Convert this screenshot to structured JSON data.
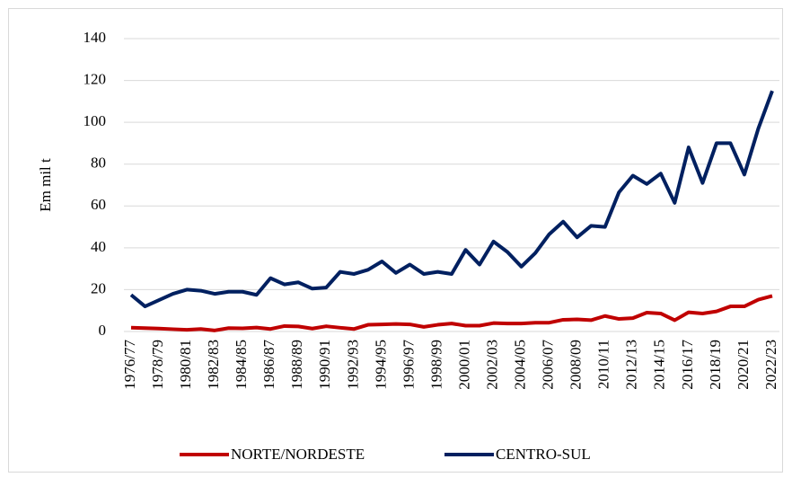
{
  "chart_data": {
    "type": "line",
    "ylabel": "Em mil t",
    "categories": [
      "1976/77",
      null,
      "1978/79",
      null,
      "1980/81",
      null,
      "1982/83",
      null,
      "1984/85",
      null,
      "1986/87",
      null,
      "1988/89",
      null,
      "1990/91",
      null,
      "1992/93",
      null,
      "1994/95",
      null,
      "1996/97",
      null,
      "1998/99",
      null,
      "2000/01",
      null,
      "2002/03",
      null,
      "2004/05",
      null,
      "2006/07",
      null,
      "2008/09",
      null,
      "2010/11",
      null,
      "2012/13",
      null,
      "2014/15",
      null,
      "2016/17",
      null,
      "2018/19",
      null,
      "2020/21",
      null,
      "2022/23"
    ],
    "series": [
      {
        "name": "NORTE/NORDESTE",
        "color": "#c00000",
        "values": [
          1.8,
          1.6,
          1.4,
          1.1,
          0.8,
          1.2,
          0.5,
          1.6,
          1.5,
          1.9,
          1.2,
          2.6,
          2.4,
          1.4,
          2.5,
          1.8,
          1.2,
          3.2,
          3.4,
          3.6,
          3.4,
          2.2,
          3.2,
          3.8,
          2.8,
          2.8,
          4.0,
          3.8,
          3.8,
          4.2,
          4.2,
          5.6,
          5.8,
          5.4,
          7.4,
          6.0,
          6.4,
          9.0,
          8.6,
          5.4,
          9.2,
          8.6,
          9.6,
          12,
          12,
          15.2,
          17
        ]
      },
      {
        "name": "CENTRO-SUL",
        "color": "#002060",
        "values": [
          17.5,
          12,
          15,
          18,
          20,
          19.5,
          18,
          19,
          19,
          17.5,
          25.5,
          22.5,
          23.5,
          20.5,
          21,
          28.5,
          27.5,
          29.5,
          33.5,
          28,
          32,
          27.5,
          28.5,
          27.5,
          39,
          32,
          43,
          38,
          31,
          37.5,
          46.5,
          52.5,
          45,
          50.5,
          50,
          66.5,
          74.5,
          70.5,
          75.5,
          61.5,
          88,
          71,
          90,
          90,
          75,
          97,
          115
        ]
      }
    ],
    "ylim": [
      0,
      140
    ],
    "yticks": [
      0,
      20,
      40,
      60,
      80,
      100,
      120,
      140
    ],
    "grid": true,
    "legend": "bottom"
  }
}
